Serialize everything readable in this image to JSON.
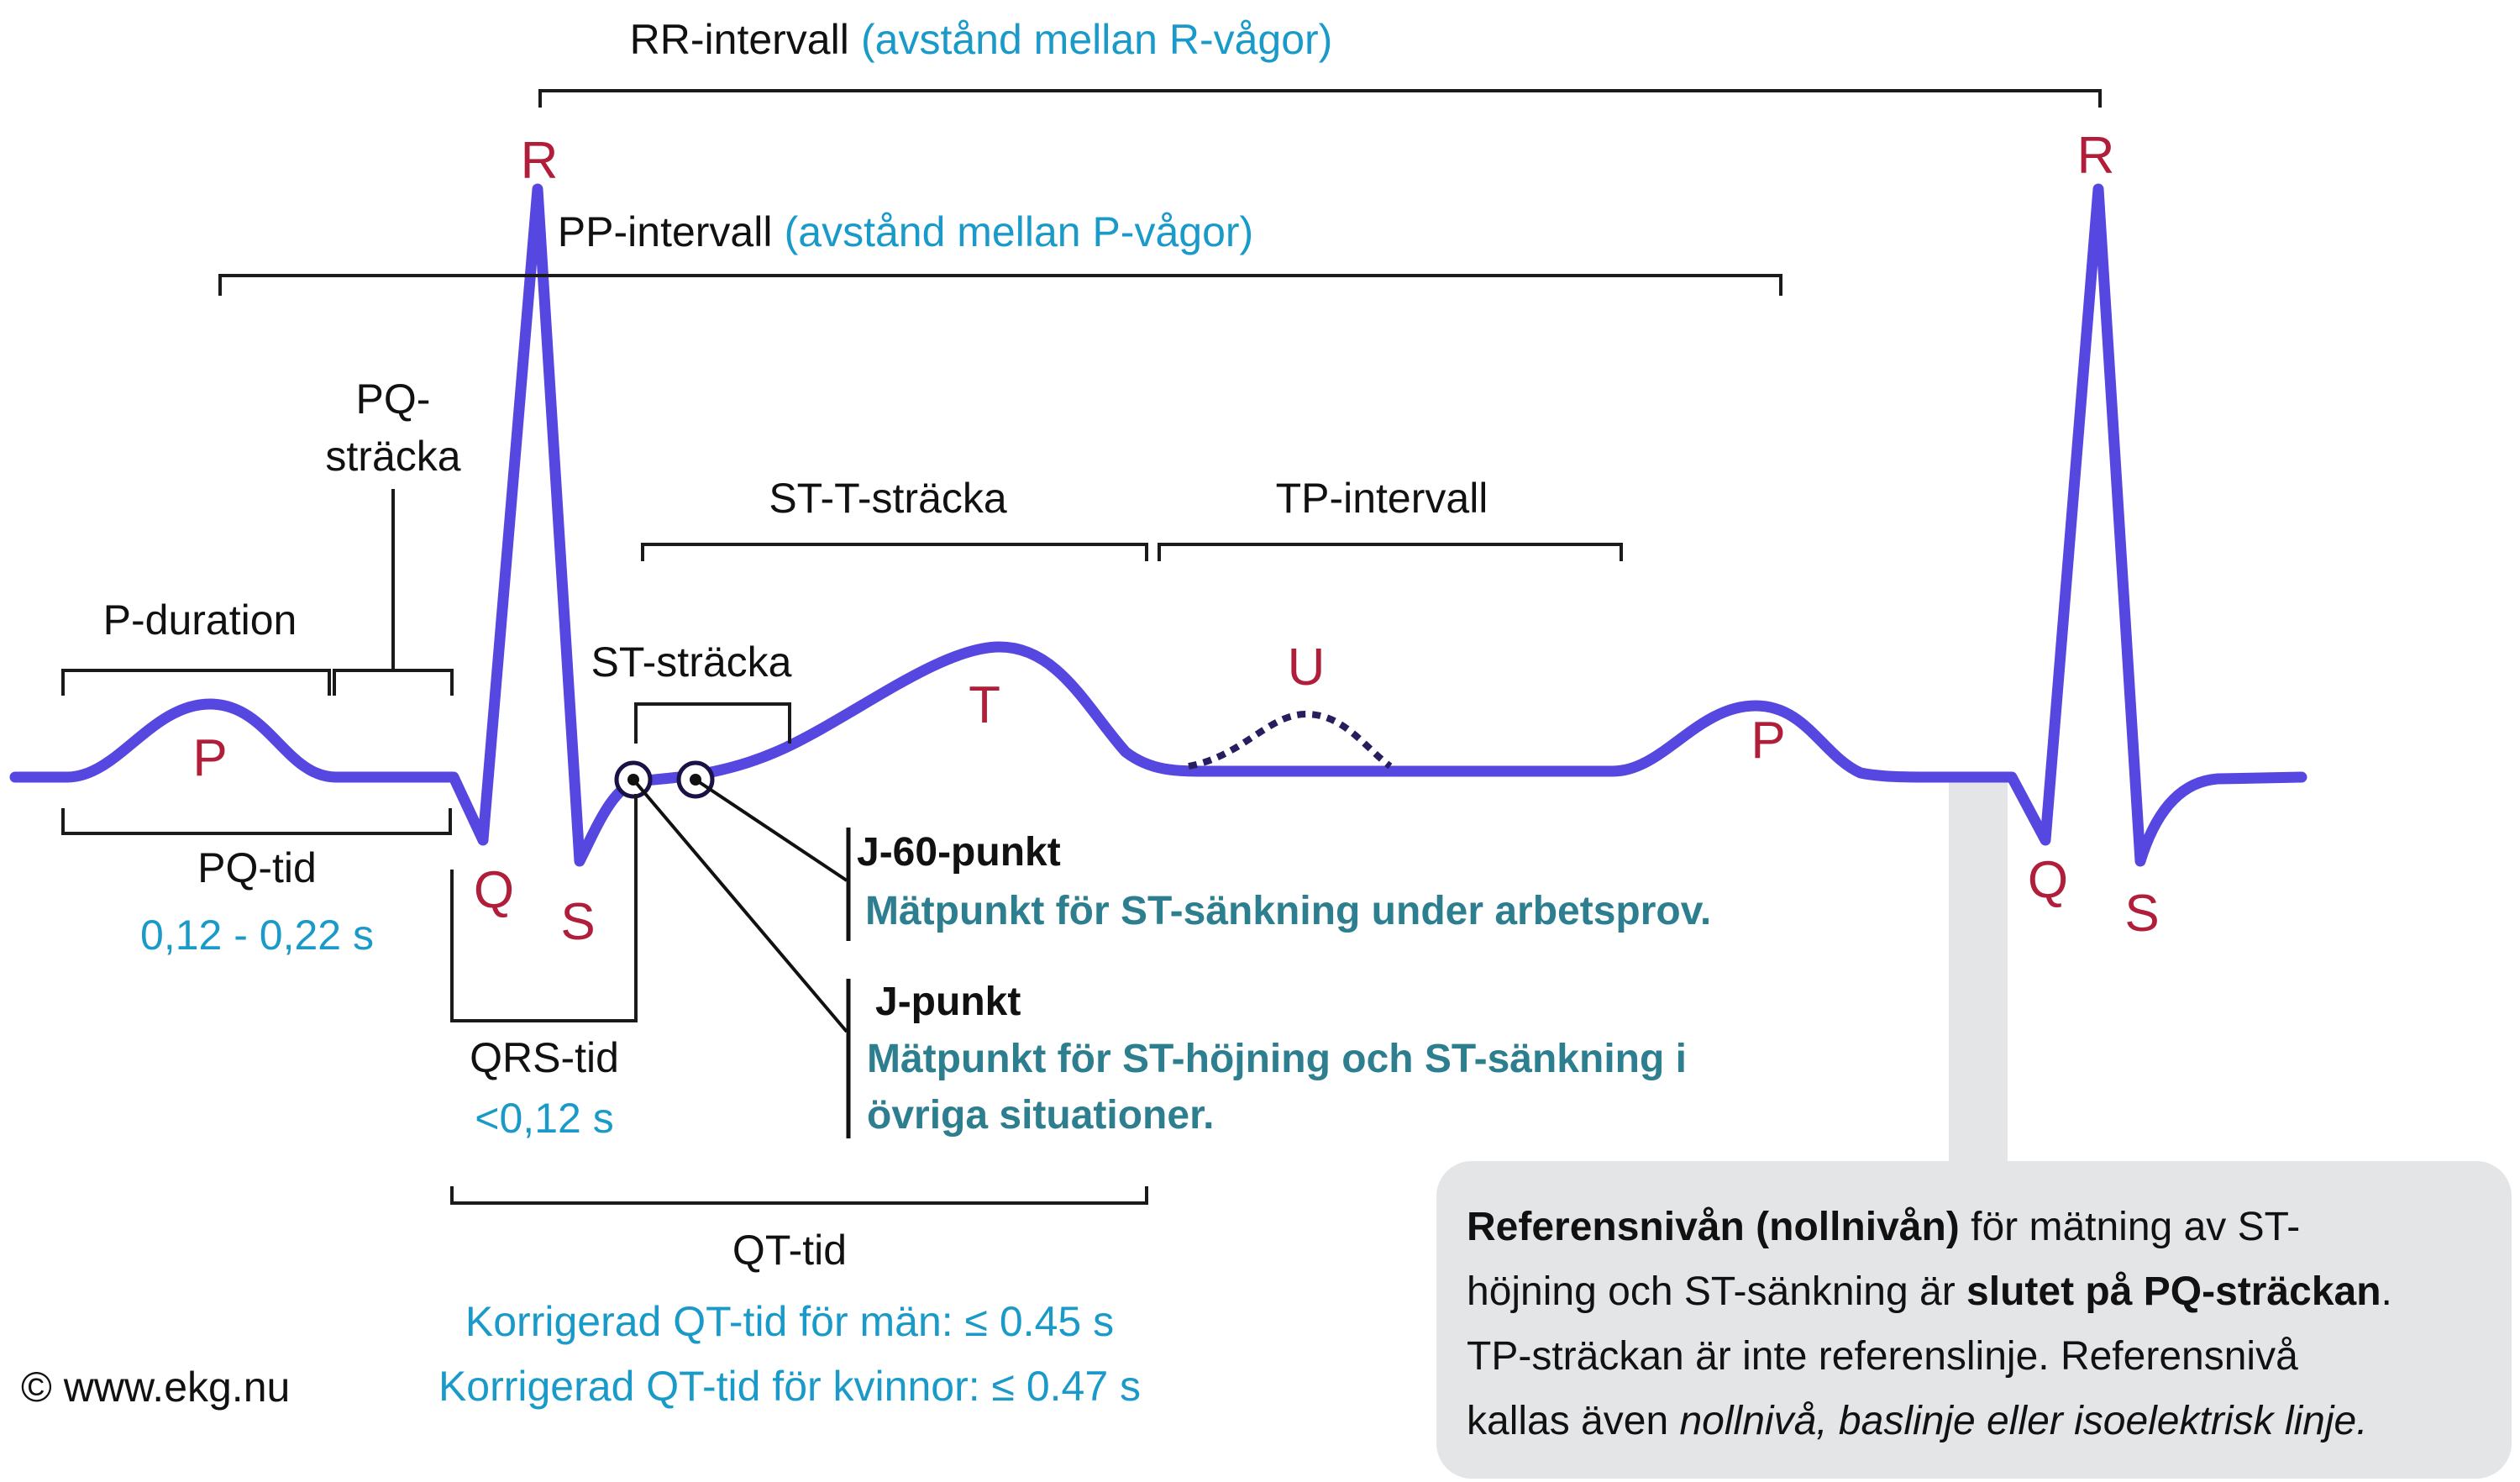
{
  "colors": {
    "waveform": "#5547e0",
    "wave_letters": "#b01e3a",
    "blue_text": "#1a9ac9",
    "teal_text": "#2d7f8f",
    "bracket": "#1a1a1a",
    "ref_box_bg": "#e4e5e7"
  },
  "rr": {
    "label": "RR-intervall",
    "desc": "(avstånd mellan R-vågor)"
  },
  "pp": {
    "label": "PP-intervall",
    "desc": "(avstånd mellan P-vågor)"
  },
  "pq_stracka": {
    "line1": "PQ-",
    "line2": "sträcka"
  },
  "p_duration": "P-duration",
  "st_t": "ST-T-sträcka",
  "tp": "TP-intervall",
  "st_stracka": "ST-sträcka",
  "waves": {
    "p": "P",
    "q": "Q",
    "r": "R",
    "s": "S",
    "t": "T",
    "u": "U"
  },
  "pq_tid": {
    "label": "PQ-tid",
    "value": "0,12 - 0,22 s"
  },
  "qrs_tid": {
    "label": "QRS-tid",
    "value": "<0,12 s"
  },
  "j60": {
    "title": "J-60-punkt",
    "desc": "Mätpunkt för ST-sänkning under arbetsprov."
  },
  "j": {
    "title": "J-punkt",
    "desc_line1": "Mätpunkt för ST-höjning och ST-sänkning i",
    "desc_line2": "övriga situationer."
  },
  "qt": {
    "label": "QT-tid",
    "corr_men": "Korrigerad QT-tid för män: ≤ 0.45 s",
    "corr_women": "Korrigerad QT-tid för kvinnor: ≤ 0.47 s"
  },
  "copyright": "© www.ekg.nu",
  "reference": {
    "b1": "Referensnivån (nollnivån)",
    "t1": " för mätning av ST-",
    "t2": "höjning och ST-sänkning är ",
    "b2": "slutet på PQ-sträckan",
    "t3": ".",
    "t4": "TP-sträckan är inte referenslinje. Referensnivå",
    "t5": "kallas även ",
    "i1": "nollnivå, baslinje eller isoelektrisk linje."
  }
}
